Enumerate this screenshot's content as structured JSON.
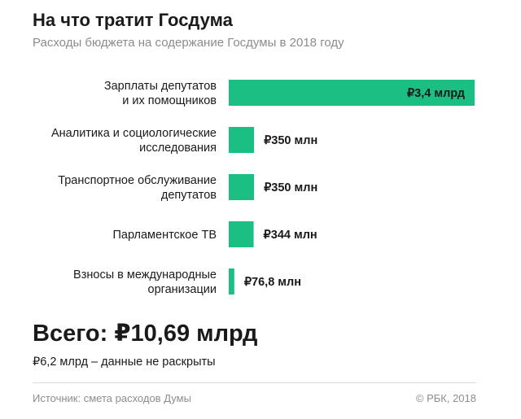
{
  "header": {
    "title": "На что тратит Госдума",
    "subtitle": "Расходы бюджета на содержание Госдумы в 2018 году"
  },
  "chart_data": {
    "type": "bar",
    "orientation": "horizontal",
    "unit": "млн ₽",
    "categories": [
      [
        "Зарплаты депутатов",
        "и их помощников"
      ],
      [
        "Аналитика и социологические",
        "исследования"
      ],
      [
        "Транспортное обслуживание",
        "депутатов"
      ],
      [
        "Парламентское ТВ"
      ],
      [
        "Взносы в международные",
        "организации"
      ]
    ],
    "values": [
      3400,
      350,
      350,
      344,
      76.8
    ],
    "value_labels": [
      "₽3,4 млрд",
      "₽350 млн",
      "₽350 млн",
      "₽344 млн",
      "₽76,8 млн"
    ],
    "bar_color": "#1bbf84",
    "grid": false
  },
  "summary": {
    "total": "Всего: ₽10,69 млрд",
    "note": "₽6,2 млрд – данные не раскрыты"
  },
  "footer": {
    "source": "Источник: смета расходов Думы",
    "copyright": "© РБК, 2018"
  }
}
